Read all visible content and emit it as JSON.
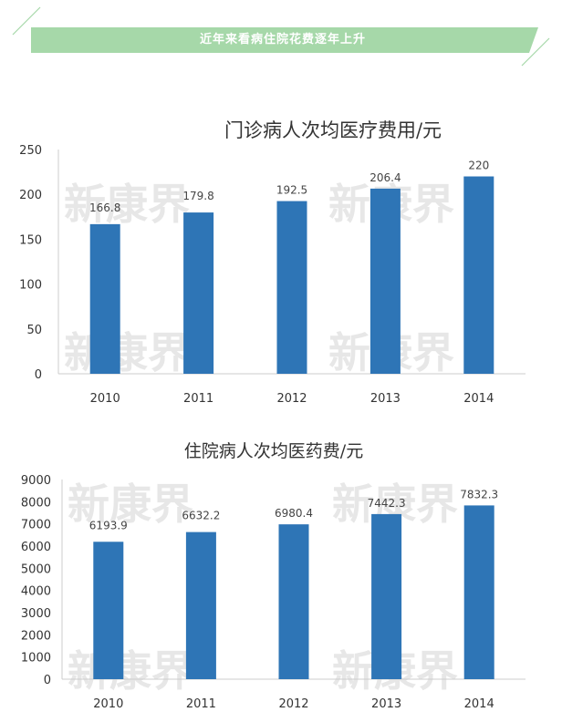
{
  "banner": {
    "title": "近年来看病住院花费逐年上升",
    "color": "#a6d8a9"
  },
  "watermark": "新康界",
  "chart_data": [
    {
      "type": "bar",
      "title": "门诊病人次均医疗费用/元",
      "categories": [
        "2010",
        "2011",
        "2012",
        "2013",
        "2014"
      ],
      "values": [
        166.8,
        179.8,
        192.5,
        206.4,
        220
      ],
      "value_labels": [
        "166.8",
        "179.8",
        "192.5",
        "206.4",
        "220"
      ],
      "ylim": [
        0,
        250
      ],
      "yticks": [
        0,
        50,
        100,
        150,
        200,
        250
      ],
      "bar_color": "#2e75b6",
      "grid": false,
      "legend": "none"
    },
    {
      "type": "bar",
      "title": "住院病人次均医药费/元",
      "categories": [
        "2010",
        "2011",
        "2012",
        "2013",
        "2014"
      ],
      "values": [
        6193.9,
        6632.2,
        6980.4,
        7442.3,
        7832.3
      ],
      "value_labels": [
        "6193.9",
        "6632.2",
        "6980.4",
        "7442.3",
        "7832.3"
      ],
      "ylim": [
        0,
        9000
      ],
      "yticks": [
        0,
        1000,
        2000,
        3000,
        4000,
        5000,
        6000,
        7000,
        8000,
        9000
      ],
      "bar_color": "#2e75b6",
      "grid": false,
      "legend": "none"
    }
  ]
}
